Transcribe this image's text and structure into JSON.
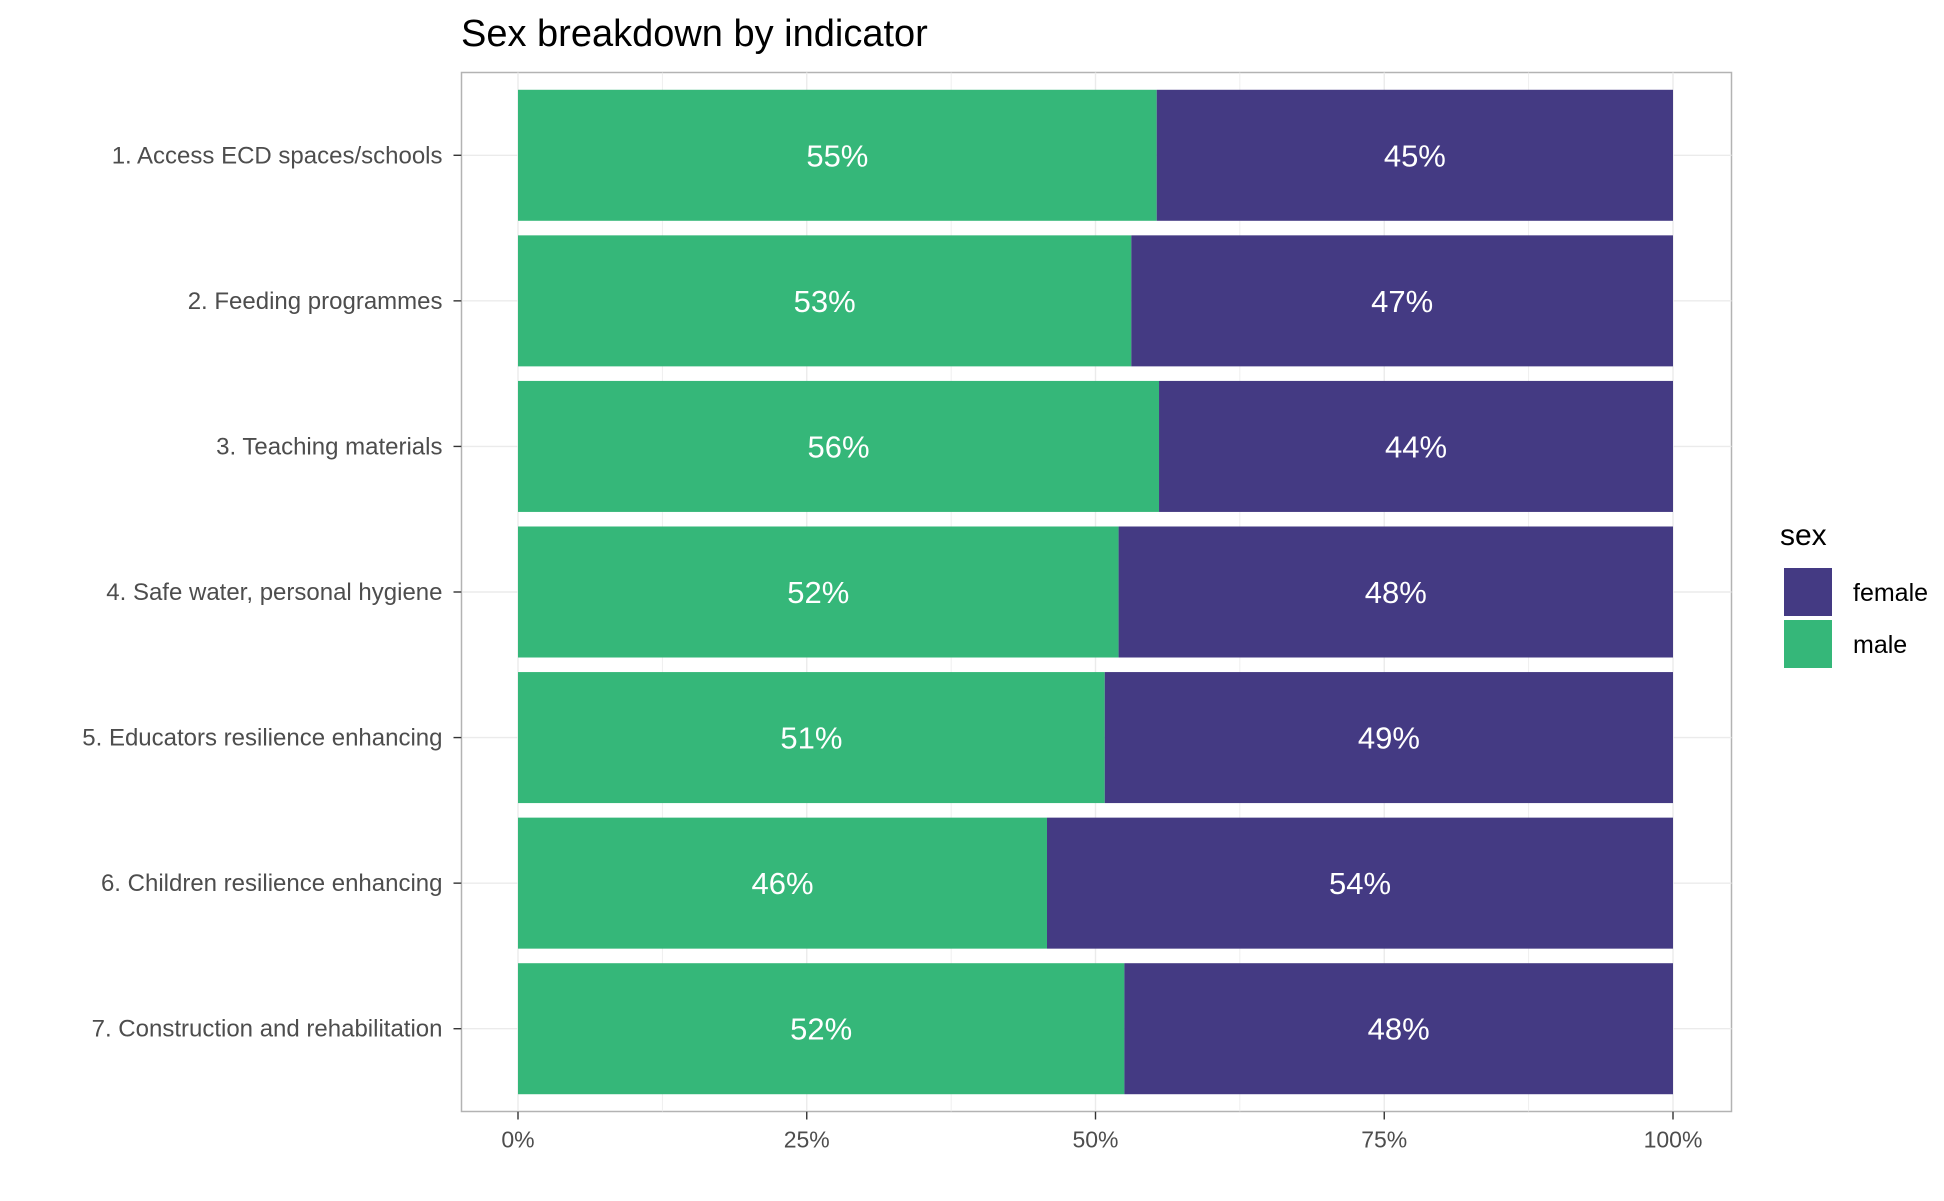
{
  "chart_data": {
    "type": "bar",
    "orientation": "horizontal",
    "stacked": "percent",
    "title": "Sex breakdown by indicator",
    "xlabel": "",
    "ylabel": "",
    "xlim": [
      0,
      1
    ],
    "x_ticks": [
      "0%",
      "25%",
      "50%",
      "75%",
      "100%"
    ],
    "grid": true,
    "legend_position": "right",
    "categories": [
      "1. Access ECD spaces/schools",
      "2. Feeding programmes",
      "3. Teaching materials",
      "4. Safe water, personal hygiene",
      "5. Educators resilience enhancing",
      "6. Children resilience enhancing",
      "7. Construction and rehabilitation"
    ],
    "series": [
      {
        "name": "male",
        "color": "#35b779",
        "values": [
          0.553,
          0.531,
          0.555,
          0.52,
          0.508,
          0.458,
          0.525
        ],
        "labels": [
          "55%",
          "53%",
          "56%",
          "52%",
          "51%",
          "46%",
          "52%"
        ]
      },
      {
        "name": "female",
        "color": "#443a83",
        "values": [
          0.447,
          0.469,
          0.445,
          0.48,
          0.492,
          0.542,
          0.475
        ],
        "labels": [
          "45%",
          "47%",
          "44%",
          "48%",
          "49%",
          "54%",
          "48%"
        ]
      }
    ],
    "legend": {
      "title": "sex",
      "entries": [
        "female",
        "male"
      ]
    }
  }
}
